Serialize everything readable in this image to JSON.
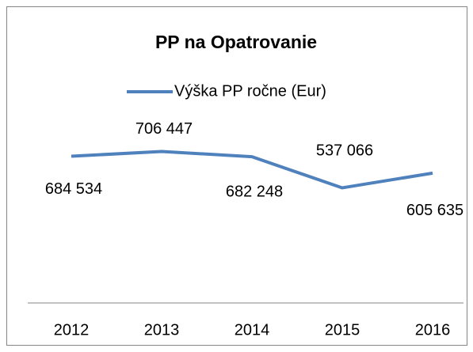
{
  "chart_data": {
    "type": "line",
    "title": "PP na Opatrovanie",
    "categories": [
      "2012",
      "2013",
      "2014",
      "2015",
      "2016"
    ],
    "series": [
      {
        "name": "Výška PP ročne (Eur)",
        "color": "#4f81bd",
        "values": [
          684534,
          706447,
          682248,
          537066,
          605635
        ],
        "value_labels": [
          "684 534",
          "706 447",
          "682 248",
          "537 066",
          "605 635"
        ]
      }
    ],
    "ylim": [
      0,
      1000000
    ],
    "legend": "top"
  }
}
